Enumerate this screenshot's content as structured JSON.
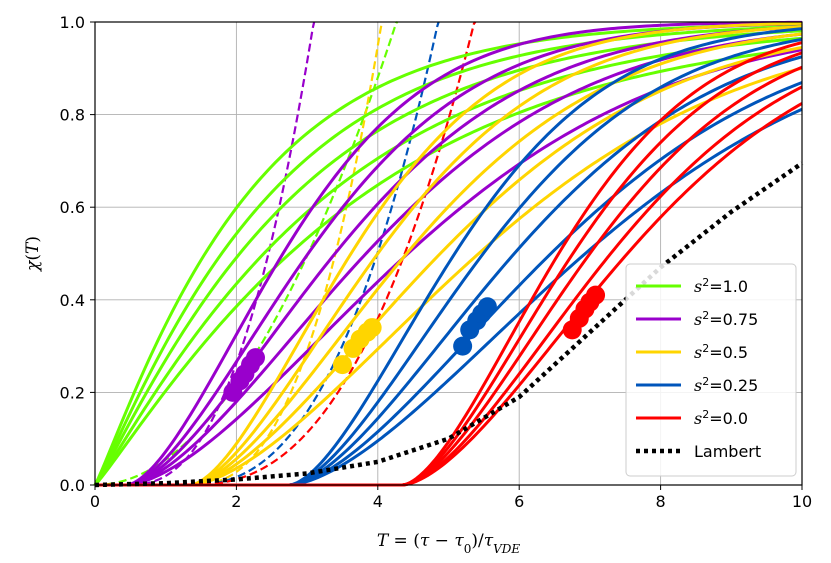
{
  "chart_data": {
    "type": "line",
    "xlabel": "T = (τ − τ₀)/τ_VDE",
    "ylabel": "χ(T)",
    "xlim": [
      0,
      10
    ],
    "ylim": [
      0,
      1.0
    ],
    "xticks": [
      "0",
      "2",
      "4",
      "6",
      "8",
      "10"
    ],
    "yticks": [
      "0.0",
      "0.2",
      "0.4",
      "0.6",
      "0.8",
      "1.0"
    ],
    "grid": true,
    "legend_position": "bottom-right",
    "series": [
      {
        "name": "s²=1.0",
        "legend_label": "s²=1.0",
        "color": "#66ff00",
        "shift": 0.0,
        "curves": [
          {
            "k": 0.46,
            "n": 1.1
          },
          {
            "k": 0.4,
            "n": 1.1
          },
          {
            "k": 0.35,
            "n": 1.1
          },
          {
            "k": 0.3,
            "n": 1.1
          },
          {
            "k": 0.26,
            "n": 1.1
          }
        ],
        "markers": [],
        "dashed": {
          "t0": 0.0,
          "a": 0.055,
          "b": 2.0
        }
      },
      {
        "name": "s²=0.75",
        "legend_label": "s²=0.75",
        "color": "#9900cc",
        "shift": 0.45,
        "curves": [
          {
            "k": 0.36,
            "n": 1.6
          },
          {
            "k": 0.31,
            "n": 1.6
          },
          {
            "k": 0.27,
            "n": 1.6
          },
          {
            "k": 0.235,
            "n": 1.6
          },
          {
            "k": 0.2,
            "n": 1.6
          }
        ],
        "markers": [
          {
            "x": 1.95,
            "y": 0.2
          },
          {
            "x": 2.05,
            "y": 0.225
          },
          {
            "x": 2.12,
            "y": 0.24
          },
          {
            "x": 2.2,
            "y": 0.26
          },
          {
            "x": 2.27,
            "y": 0.275
          }
        ],
        "dashed": {
          "t0": 0.45,
          "a": 0.088,
          "b": 2.5
        }
      },
      {
        "name": "s²=0.5",
        "legend_label": "s²=0.5",
        "color": "#ffd500",
        "shift": 1.35,
        "curves": [
          {
            "k": 0.35,
            "n": 1.6
          },
          {
            "k": 0.3,
            "n": 1.6
          },
          {
            "k": 0.26,
            "n": 1.6
          },
          {
            "k": 0.225,
            "n": 1.6
          },
          {
            "k": 0.195,
            "n": 1.6
          }
        ],
        "markers": [
          {
            "x": 3.5,
            "y": 0.26
          },
          {
            "x": 3.65,
            "y": 0.295
          },
          {
            "x": 3.75,
            "y": 0.315
          },
          {
            "x": 3.85,
            "y": 0.33
          },
          {
            "x": 3.92,
            "y": 0.34
          }
        ],
        "dashed": {
          "t0": 1.35,
          "a": 0.083,
          "b": 2.5
        }
      },
      {
        "name": "s²=0.25",
        "legend_label": "s²=0.25",
        "color": "#0055bb",
        "shift": 2.75,
        "curves": [
          {
            "k": 0.34,
            "n": 1.6
          },
          {
            "k": 0.29,
            "n": 1.6
          },
          {
            "k": 0.25,
            "n": 1.6
          },
          {
            "k": 0.215,
            "n": 1.6
          },
          {
            "k": 0.19,
            "n": 1.6
          }
        ],
        "markers": [
          {
            "x": 5.2,
            "y": 0.3
          },
          {
            "x": 5.3,
            "y": 0.335
          },
          {
            "x": 5.4,
            "y": 0.355
          },
          {
            "x": 5.47,
            "y": 0.37
          },
          {
            "x": 5.55,
            "y": 0.385
          }
        ],
        "dashed": {
          "t0": 1.3,
          "a": 0.042,
          "b": 2.5
        }
      },
      {
        "name": "s²=0.0",
        "legend_label": "s²=0.0",
        "color": "#ff0000",
        "shift": 4.35,
        "curves": [
          {
            "k": 0.36,
            "n": 1.6
          },
          {
            "k": 0.33,
            "n": 1.6
          },
          {
            "k": 0.3,
            "n": 1.6
          },
          {
            "k": 0.27,
            "n": 1.6
          },
          {
            "k": 0.25,
            "n": 1.6
          }
        ],
        "markers": [
          {
            "x": 6.75,
            "y": 0.335
          },
          {
            "x": 6.85,
            "y": 0.36
          },
          {
            "x": 6.93,
            "y": 0.38
          },
          {
            "x": 7.0,
            "y": 0.395
          },
          {
            "x": 7.08,
            "y": 0.41
          }
        ],
        "dashed": {
          "t0": 1.3,
          "a": 0.03,
          "b": 2.5
        }
      }
    ],
    "lambert": {
      "name": "Lambert",
      "legend_label": "Lambert",
      "color": "#000000",
      "x": [
        0,
        1,
        2,
        3,
        4,
        5,
        6,
        7,
        8,
        9,
        10
      ],
      "y": [
        0.0,
        0.004,
        0.012,
        0.025,
        0.05,
        0.1,
        0.19,
        0.33,
        0.47,
        0.59,
        0.695
      ]
    }
  }
}
